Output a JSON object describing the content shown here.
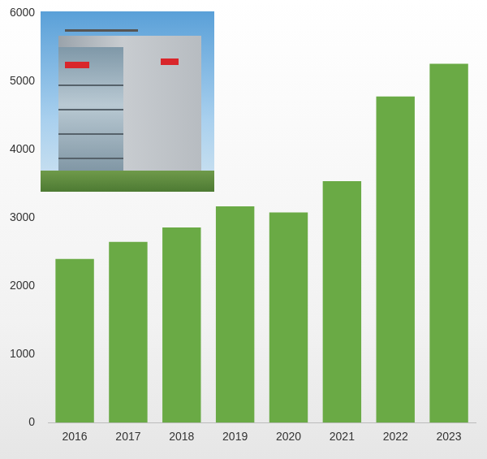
{
  "chart_data": {
    "type": "bar",
    "categories": [
      "2016",
      "2017",
      "2018",
      "2019",
      "2020",
      "2021",
      "2022",
      "2023"
    ],
    "values": [
      2400,
      2650,
      2860,
      3170,
      3080,
      3540,
      4780,
      5260
    ],
    "color": "#6aaa45",
    "ylim": [
      0,
      6000
    ],
    "yticks": [
      0,
      1000,
      2000,
      3000,
      4000,
      5000,
      6000
    ],
    "grid": false
  }
}
